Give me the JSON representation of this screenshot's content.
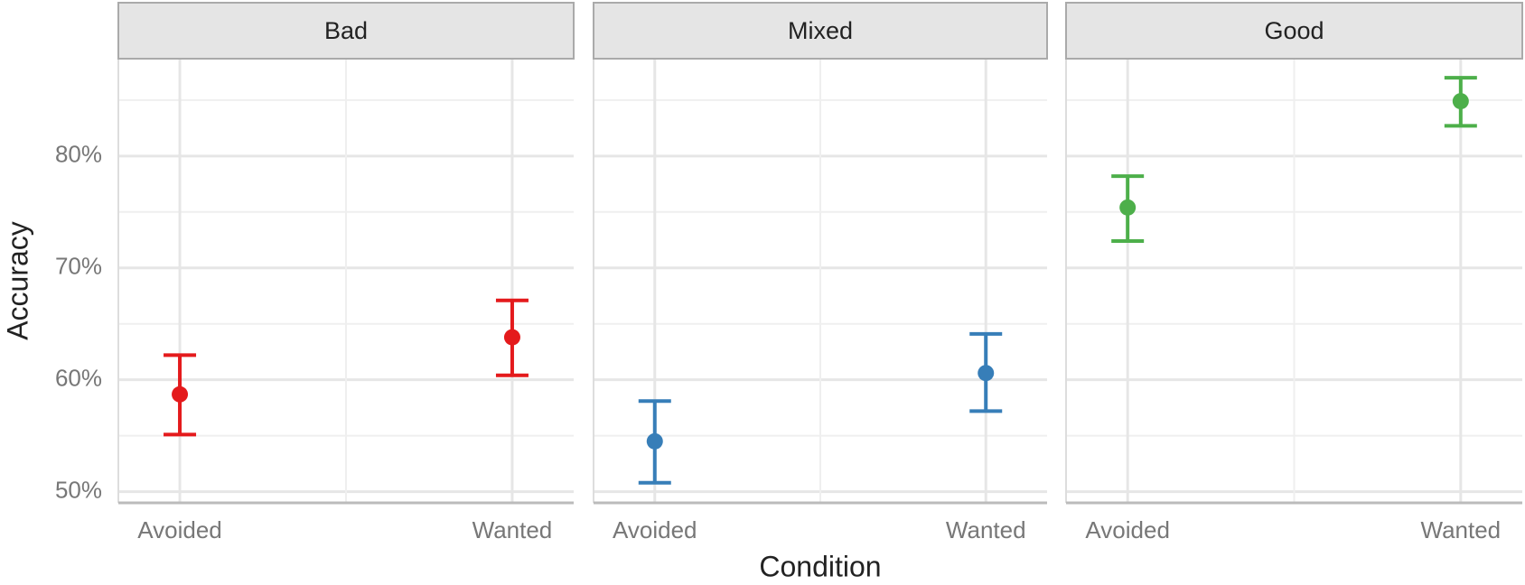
{
  "chart_data": {
    "type": "errorbar",
    "x_label": "Condition",
    "y_label": "Accuracy",
    "categories": [
      "Avoided",
      "Wanted"
    ],
    "ylim": [
      49,
      88.7
    ],
    "yticks": [
      {
        "value": 50,
        "label": "50%"
      },
      {
        "value": 60,
        "label": "60%"
      },
      {
        "value": 70,
        "label": "70%"
      },
      {
        "value": 80,
        "label": "80%"
      }
    ],
    "minor_yticks": [
      55,
      65,
      75,
      85
    ],
    "grid": true,
    "facets": [
      {
        "title": "Bad",
        "color": "#e41a1c",
        "values": [
          58.7,
          63.8
        ],
        "lower": [
          55.1,
          60.4
        ],
        "upper": [
          62.2,
          67.1
        ]
      },
      {
        "title": "Mixed",
        "color": "#377eb8",
        "values": [
          54.5,
          60.6
        ],
        "lower": [
          50.8,
          57.2
        ],
        "upper": [
          58.1,
          64.1
        ]
      },
      {
        "title": "Good",
        "color": "#4daf4a",
        "values": [
          75.4,
          84.9
        ],
        "lower": [
          72.4,
          82.7
        ],
        "upper": [
          78.2,
          87.0
        ]
      }
    ]
  }
}
